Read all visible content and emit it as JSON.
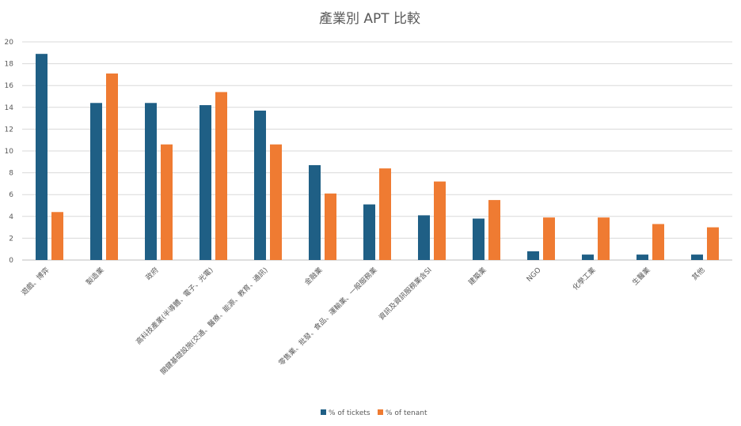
{
  "chart_data": {
    "type": "bar",
    "title": "產業別 APT 比較",
    "xlabel": "",
    "ylabel": "",
    "ylim": [
      0,
      20
    ],
    "yticks": [
      0,
      2,
      4,
      6,
      8,
      10,
      12,
      14,
      16,
      18,
      20
    ],
    "grid": true,
    "legend_position": "bottom",
    "categories": [
      "遊戲、博弈",
      "製造業",
      "政府",
      "高科技產業(半導體、電子、光電)",
      "關鍵基礎設施(交通、醫療、能源、教育、通訊)",
      "金融業",
      "零售業、批發、食品、運輸業、一般服務業",
      "資訊及資訊服務業含SI",
      "建築業",
      "NGO",
      "化學工業",
      "生醫業",
      "其他"
    ],
    "series": [
      {
        "name": "% of tickets",
        "color": "#1f5f85",
        "values": [
          18.9,
          14.4,
          14.4,
          14.2,
          13.7,
          8.7,
          5.1,
          4.1,
          3.8,
          0.8,
          0.5,
          0.5,
          0.5
        ]
      },
      {
        "name": "% of tenant",
        "color": "#ef7b32",
        "values": [
          4.4,
          17.1,
          10.6,
          15.4,
          10.6,
          6.1,
          8.4,
          7.2,
          5.5,
          3.9,
          3.9,
          3.3,
          3.0
        ]
      }
    ]
  }
}
